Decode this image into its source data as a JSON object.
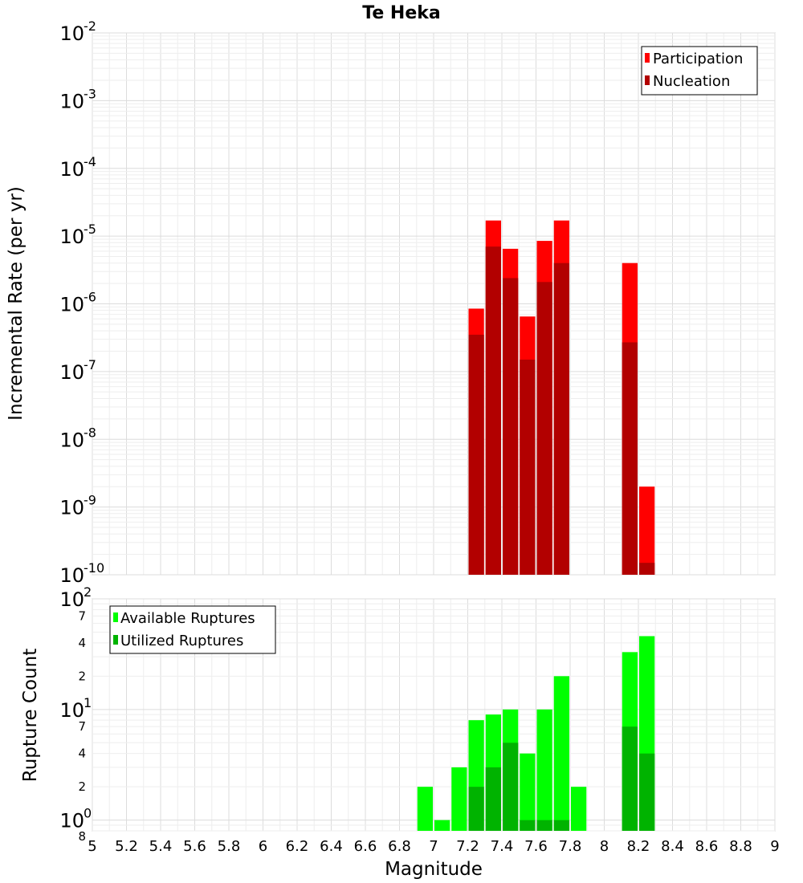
{
  "chart_data": {
    "title": "Te Heka",
    "xlabel": "Magnitude",
    "xlim": [
      5,
      9
    ],
    "x_ticks": [
      "5",
      "5.2",
      "5.4",
      "5.6",
      "5.8",
      "6",
      "6.2",
      "6.4",
      "6.6",
      "6.8",
      "7",
      "7.2",
      "7.4",
      "7.6",
      "7.8",
      "8",
      "8.2",
      "8.4",
      "8.6",
      "8.8",
      "9"
    ],
    "bin_width": 0.1,
    "panels": [
      {
        "type": "bar",
        "ylabel": "Incremental Rate (per yr)",
        "yscale": "log",
        "ylim": [
          1e-10,
          0.01
        ],
        "y_ticks": [
          {
            "base": "10",
            "exp": "-2"
          },
          {
            "base": "10",
            "exp": "-3"
          },
          {
            "base": "10",
            "exp": "-4"
          },
          {
            "base": "10",
            "exp": "-5"
          },
          {
            "base": "10",
            "exp": "-6"
          },
          {
            "base": "10",
            "exp": "-7"
          },
          {
            "base": "10",
            "exp": "-8"
          },
          {
            "base": "10",
            "exp": "-9"
          },
          {
            "base": "10",
            "exp": "-10"
          }
        ],
        "legend_position": "top-right",
        "series": [
          {
            "name": "Participation",
            "color": "#ff0000",
            "x": [
              7.25,
              7.35,
              7.45,
              7.55,
              7.65,
              7.75,
              8.15,
              8.25
            ],
            "values": [
              8.5e-07,
              1.7e-05,
              6.5e-06,
              6.5e-07,
              8.5e-06,
              1.7e-05,
              4e-06,
              2e-09
            ]
          },
          {
            "name": "Nucleation",
            "color": "#b20000",
            "x": [
              7.25,
              7.35,
              7.45,
              7.55,
              7.65,
              7.75,
              8.15,
              8.25
            ],
            "values": [
              3.5e-07,
              7e-06,
              2.4e-06,
              1.5e-07,
              2.1e-06,
              4e-06,
              2.7e-07,
              1.5e-10
            ]
          }
        ]
      },
      {
        "type": "bar",
        "ylabel": "Rupture Count",
        "yscale": "log",
        "ylim": [
          0.8,
          100
        ],
        "y_ticks": [
          {
            "base": "10",
            "exp": "2"
          },
          {
            "base": "10",
            "exp": "1"
          },
          {
            "base": "10",
            "exp": "0"
          }
        ],
        "y_minor_ticks": [
          "7",
          "4",
          "2",
          "7",
          "4",
          "2",
          "8"
        ],
        "legend_position": "top-left",
        "series": [
          {
            "name": "Available Ruptures",
            "color": "#00ff00",
            "x": [
              6.95,
              7.05,
              7.15,
              7.25,
              7.35,
              7.45,
              7.55,
              7.65,
              7.75,
              7.85,
              8.15,
              8.25
            ],
            "values": [
              2,
              1,
              3,
              8,
              9,
              10,
              4,
              10,
              20,
              2,
              33,
              46
            ]
          },
          {
            "name": "Utilized Ruptures",
            "color": "#00b300",
            "x": [
              7.25,
              7.35,
              7.45,
              7.55,
              7.65,
              7.75,
              8.15,
              8.25
            ],
            "values": [
              2,
              3,
              5,
              1,
              1,
              1,
              7,
              4
            ]
          }
        ]
      }
    ]
  }
}
